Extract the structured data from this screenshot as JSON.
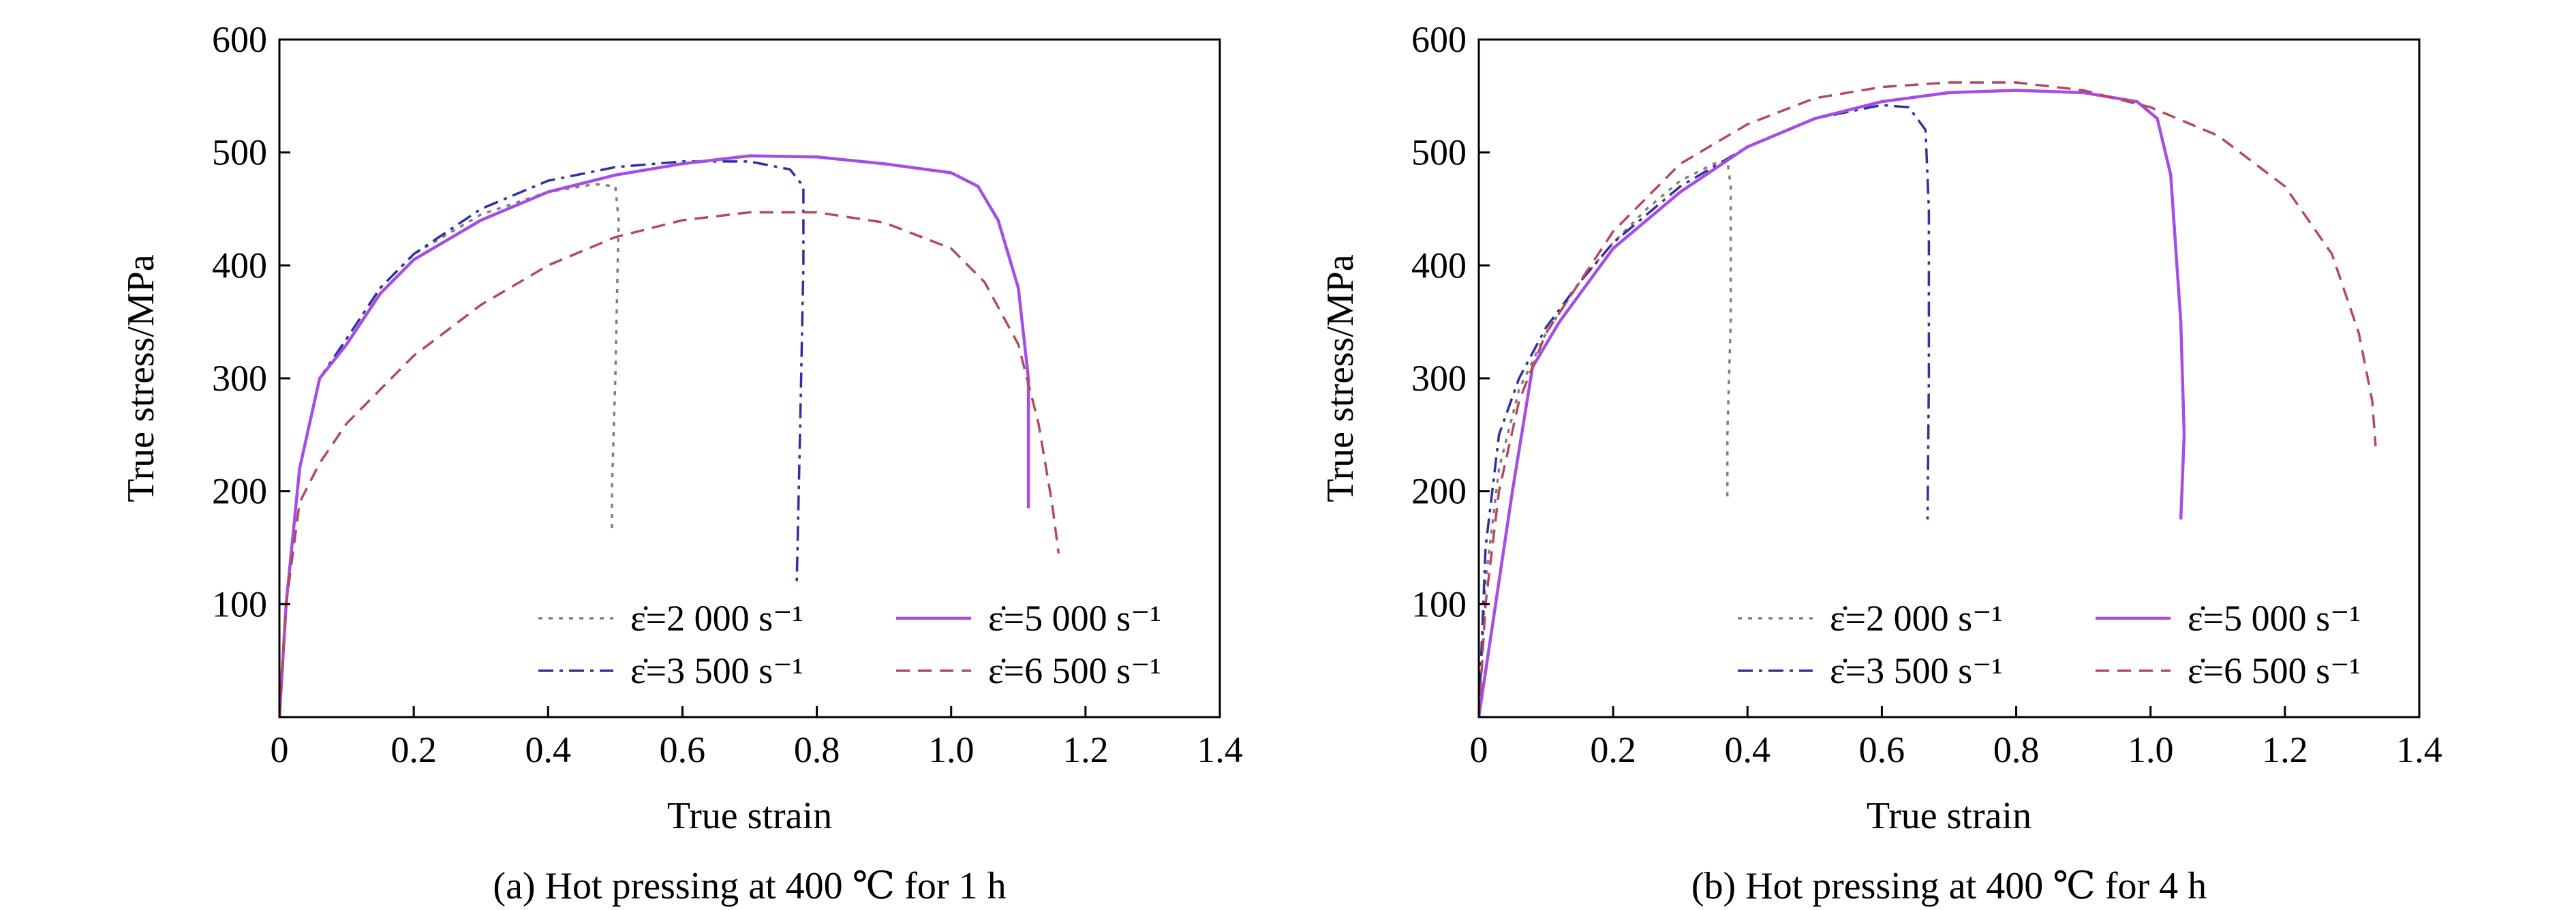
{
  "chart_data": [
    {
      "type": "line",
      "caption": "(a) Hot pressing at 400 ℃ for 1 h",
      "xlabel": "True strain",
      "ylabel": "True stress/MPa",
      "xlim": [
        0,
        1.4
      ],
      "ylim": [
        0,
        600
      ],
      "x_ticks": [
        "0",
        "0.2",
        "0.4",
        "0.6",
        "0.8",
        "1.0",
        "1.2",
        "1.4"
      ],
      "y_ticks": [
        "100",
        "200",
        "300",
        "400",
        "500",
        "600"
      ],
      "legend_position": "lower-right",
      "series": [
        {
          "name": "ε̇=2 000 s⁻¹",
          "color": "#7f7f7f",
          "dash": "dotted",
          "points": [
            [
              0,
              0
            ],
            [
              0.01,
              100
            ],
            [
              0.03,
              220
            ],
            [
              0.06,
              300
            ],
            [
              0.1,
              335
            ],
            [
              0.15,
              380
            ],
            [
              0.2,
              410
            ],
            [
              0.3,
              445
            ],
            [
              0.4,
              465
            ],
            [
              0.47,
              472
            ],
            [
              0.5,
              470
            ],
            [
              0.505,
              440
            ],
            [
              0.5,
              300
            ],
            [
              0.495,
              200
            ],
            [
              0.495,
              165
            ]
          ]
        },
        {
          "name": "ε̇=3 500 s⁻¹",
          "color": "#3030a0",
          "dash": "dashdot",
          "points": [
            [
              0,
              0
            ],
            [
              0.01,
              100
            ],
            [
              0.03,
              220
            ],
            [
              0.06,
              300
            ],
            [
              0.1,
              335
            ],
            [
              0.15,
              380
            ],
            [
              0.2,
              410
            ],
            [
              0.3,
              450
            ],
            [
              0.4,
              475
            ],
            [
              0.5,
              487
            ],
            [
              0.6,
              492
            ],
            [
              0.7,
              492
            ],
            [
              0.76,
              485
            ],
            [
              0.78,
              470
            ],
            [
              0.78,
              400
            ],
            [
              0.775,
              250
            ],
            [
              0.77,
              115
            ]
          ]
        },
        {
          "name": "ε̇=5 000 s⁻¹",
          "color": "#a64de3",
          "dash": "solid",
          "points": [
            [
              0,
              0
            ],
            [
              0.01,
              100
            ],
            [
              0.03,
              220
            ],
            [
              0.06,
              300
            ],
            [
              0.1,
              330
            ],
            [
              0.15,
              375
            ],
            [
              0.2,
              405
            ],
            [
              0.3,
              440
            ],
            [
              0.4,
              465
            ],
            [
              0.5,
              480
            ],
            [
              0.6,
              490
            ],
            [
              0.7,
              497
            ],
            [
              0.8,
              496
            ],
            [
              0.9,
              490
            ],
            [
              1.0,
              482
            ],
            [
              1.04,
              470
            ],
            [
              1.07,
              440
            ],
            [
              1.1,
              380
            ],
            [
              1.115,
              300
            ],
            [
              1.115,
              185
            ]
          ]
        },
        {
          "name": "ε̇=6 500 s⁻¹",
          "color": "#b5485e",
          "dash": "dashed",
          "points": [
            [
              0,
              0
            ],
            [
              0.01,
              100
            ],
            [
              0.03,
              190
            ],
            [
              0.06,
              225
            ],
            [
              0.1,
              260
            ],
            [
              0.2,
              320
            ],
            [
              0.3,
              365
            ],
            [
              0.4,
              400
            ],
            [
              0.5,
              425
            ],
            [
              0.6,
              440
            ],
            [
              0.7,
              447
            ],
            [
              0.8,
              447
            ],
            [
              0.9,
              438
            ],
            [
              1.0,
              415
            ],
            [
              1.05,
              385
            ],
            [
              1.1,
              330
            ],
            [
              1.13,
              260
            ],
            [
              1.15,
              190
            ],
            [
              1.16,
              145
            ]
          ]
        }
      ]
    },
    {
      "type": "line",
      "caption": "(b) Hot pressing at 400 ℃ for 4 h",
      "xlabel": "True strain",
      "ylabel": "True stress/MPa",
      "xlim": [
        0,
        1.4
      ],
      "ylim": [
        0,
        600
      ],
      "x_ticks": [
        "0",
        "0.2",
        "0.4",
        "0.6",
        "0.8",
        "1.0",
        "1.2",
        "1.4"
      ],
      "y_ticks": [
        "100",
        "200",
        "300",
        "400",
        "500",
        "600"
      ],
      "legend_position": "lower-right",
      "series": [
        {
          "name": "ε̇=2 000 s⁻¹",
          "color": "#7f7f7f",
          "dash": "dotted",
          "points": [
            [
              0,
              0
            ],
            [
              0.01,
              120
            ],
            [
              0.03,
              220
            ],
            [
              0.06,
              290
            ],
            [
              0.1,
              340
            ],
            [
              0.15,
              385
            ],
            [
              0.2,
              420
            ],
            [
              0.25,
              450
            ],
            [
              0.3,
              475
            ],
            [
              0.35,
              490
            ],
            [
              0.37,
              493
            ],
            [
              0.375,
              470
            ],
            [
              0.375,
              350
            ],
            [
              0.37,
              250
            ],
            [
              0.37,
              190
            ]
          ]
        },
        {
          "name": "ε̇=3 500 s⁻¹",
          "color": "#3030a0",
          "dash": "dashdot",
          "points": [
            [
              0,
              0
            ],
            [
              0.01,
              150
            ],
            [
              0.03,
              250
            ],
            [
              0.06,
              300
            ],
            [
              0.1,
              345
            ],
            [
              0.15,
              385
            ],
            [
              0.2,
              420
            ],
            [
              0.3,
              470
            ],
            [
              0.4,
              505
            ],
            [
              0.5,
              530
            ],
            [
              0.6,
              542
            ],
            [
              0.64,
              540
            ],
            [
              0.665,
              520
            ],
            [
              0.67,
              450
            ],
            [
              0.67,
              300
            ],
            [
              0.668,
              175
            ]
          ]
        },
        {
          "name": "ε̇=5 000 s⁻¹",
          "color": "#a64de3",
          "dash": "solid",
          "points": [
            [
              0,
              0
            ],
            [
              0.02,
              80
            ],
            [
              0.05,
              200
            ],
            [
              0.08,
              310
            ],
            [
              0.12,
              350
            ],
            [
              0.2,
              415
            ],
            [
              0.3,
              465
            ],
            [
              0.4,
              505
            ],
            [
              0.5,
              530
            ],
            [
              0.6,
              545
            ],
            [
              0.7,
              553
            ],
            [
              0.8,
              555
            ],
            [
              0.9,
              553
            ],
            [
              0.98,
              545
            ],
            [
              1.01,
              530
            ],
            [
              1.03,
              480
            ],
            [
              1.045,
              350
            ],
            [
              1.05,
              250
            ],
            [
              1.045,
              175
            ]
          ]
        },
        {
          "name": "ε̇=6 500 s⁻¹",
          "color": "#b5485e",
          "dash": "dashed",
          "points": [
            [
              0,
              0
            ],
            [
              0.01,
              100
            ],
            [
              0.03,
              200
            ],
            [
              0.06,
              280
            ],
            [
              0.1,
              340
            ],
            [
              0.2,
              430
            ],
            [
              0.3,
              490
            ],
            [
              0.4,
              525
            ],
            [
              0.5,
              548
            ],
            [
              0.6,
              558
            ],
            [
              0.7,
              562
            ],
            [
              0.8,
              562
            ],
            [
              0.9,
              555
            ],
            [
              1.0,
              540
            ],
            [
              1.1,
              515
            ],
            [
              1.2,
              470
            ],
            [
              1.27,
              410
            ],
            [
              1.31,
              340
            ],
            [
              1.33,
              280
            ],
            [
              1.335,
              240
            ]
          ]
        }
      ]
    }
  ]
}
